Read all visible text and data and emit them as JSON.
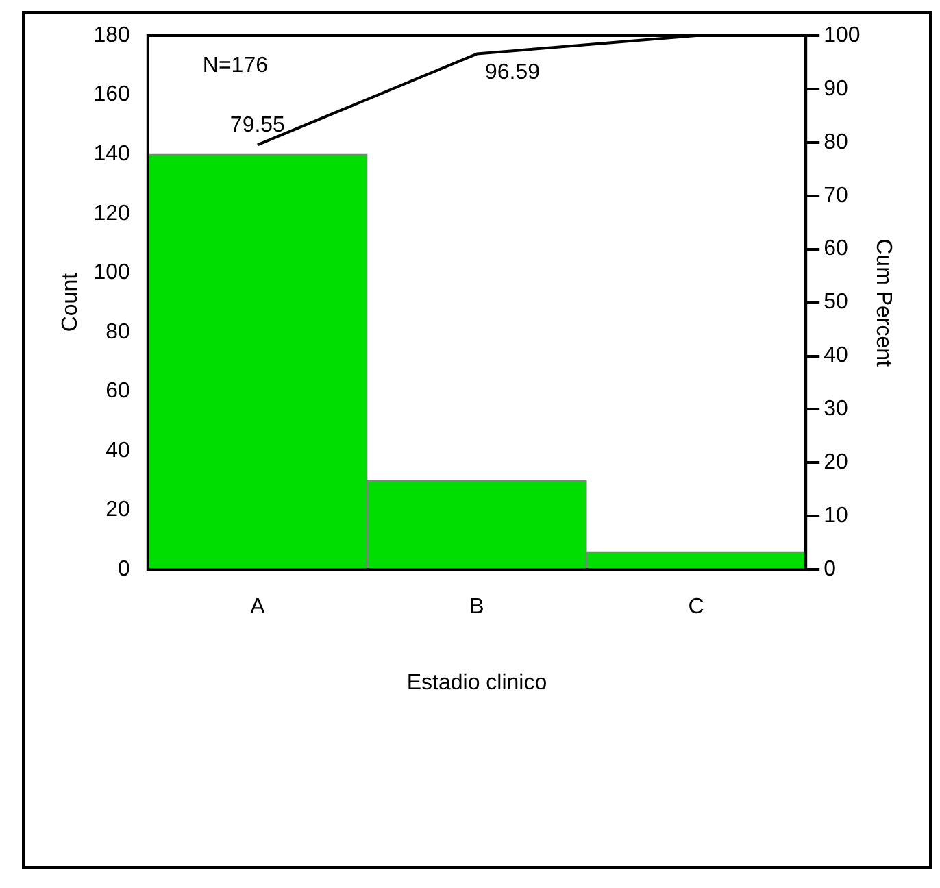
{
  "chart_data": {
    "type": "bar",
    "xlabel": "Estadio clinico",
    "ylabel": "Count",
    "y2label": "Cum Percent",
    "categories": [
      "A",
      "B",
      "C"
    ],
    "series": [
      {
        "color": "#00dd00",
        "values": [
          140,
          30,
          6
        ]
      },
      {
        "type": "line",
        "axis": "y2",
        "color": "#000000",
        "values": [
          79.55,
          96.59,
          100
        ],
        "value_labels": [
          "79.55",
          "96.59",
          null
        ]
      }
    ],
    "ylim": [
      0,
      180
    ],
    "yticks": [
      0,
      20,
      40,
      60,
      80,
      100,
      120,
      140,
      160,
      180
    ],
    "y2lim": [
      0,
      100
    ],
    "y2ticks": [
      0,
      10,
      20,
      30,
      40,
      50,
      60,
      70,
      80,
      90,
      100
    ],
    "annotations": [
      "N=176"
    ],
    "grid": false,
    "legend": false,
    "marker": "none"
  }
}
